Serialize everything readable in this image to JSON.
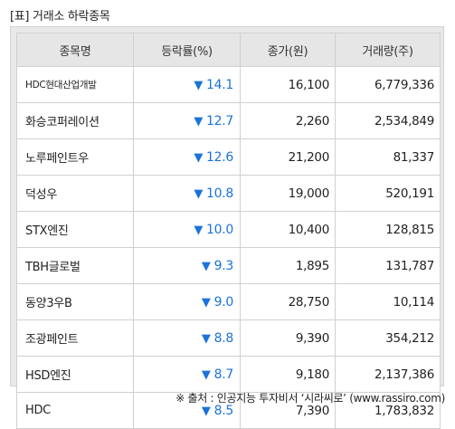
{
  "title": "[표] 거래소 하락종목",
  "columns": [
    "종목명",
    "등락률(%)",
    "종가(원)",
    "거래량(주)"
  ],
  "down_arrow": "▼",
  "rows": [
    {
      "name": "HDC현대산업개발",
      "rate": "14.1",
      "close": "16,100",
      "volume": "6,779,336"
    },
    {
      "name": "화승코퍼레이션",
      "rate": "12.7",
      "close": "2,260",
      "volume": "2,534,849"
    },
    {
      "name": "노루페인트우",
      "rate": "12.6",
      "close": "21,200",
      "volume": "81,337"
    },
    {
      "name": "덕성우",
      "rate": "10.8",
      "close": "19,000",
      "volume": "520,191"
    },
    {
      "name": "STX엔진",
      "rate": "10.0",
      "close": "10,400",
      "volume": "128,815"
    },
    {
      "name": "TBH글로벌",
      "rate": "9.3",
      "close": "1,895",
      "volume": "131,787"
    },
    {
      "name": "동양3우B",
      "rate": "9.0",
      "close": "28,750",
      "volume": "10,114"
    },
    {
      "name": "조광페인트",
      "rate": "8.8",
      "close": "9,390",
      "volume": "354,212"
    },
    {
      "name": "HSD엔진",
      "rate": "8.7",
      "close": "9,180",
      "volume": "2,137,386"
    },
    {
      "name": "HDC",
      "rate": "8.5",
      "close": "7,390",
      "volume": "1,783,832"
    }
  ],
  "source": "※ 출처 : 인공지능 투자비서 ‘시라씨로’ (www.rassiro.com)",
  "colors": {
    "decline": "#1a73d9",
    "header_bg": "#e6e6e6",
    "panel_bg": "#e9e9e9"
  }
}
